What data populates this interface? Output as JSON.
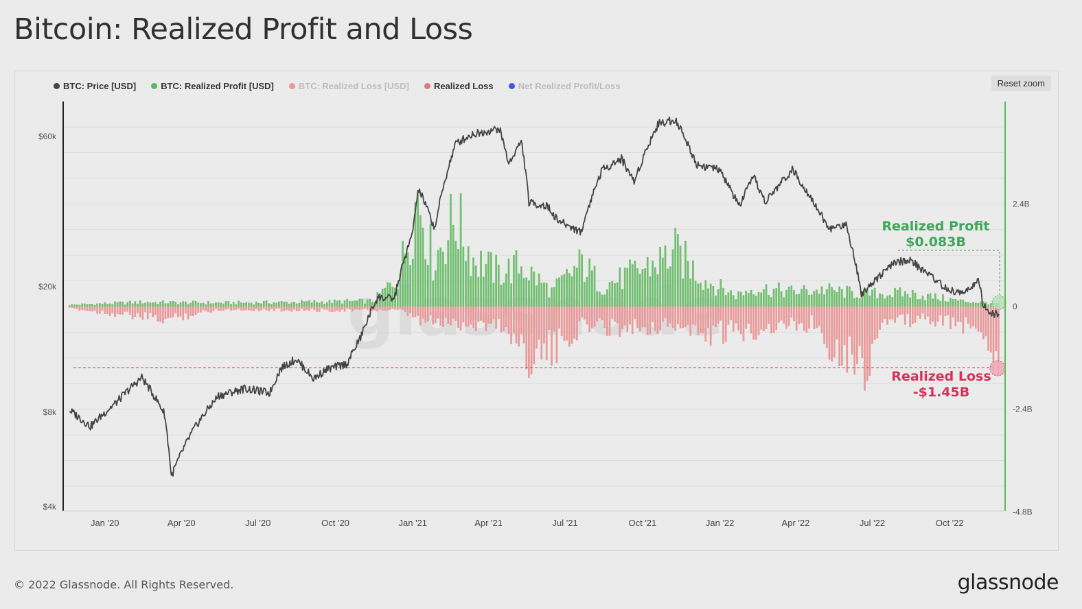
{
  "page": {
    "title": "Bitcoin: Realized Profit and Loss",
    "copyright": "© 2022 Glassnode. All Rights Reserved.",
    "brand": "glassnode",
    "watermark": "glassnode",
    "reset_zoom_label": "Reset zoom"
  },
  "legend": [
    {
      "label": "BTC: Price [USD]",
      "color": "#444444",
      "dimmed": false
    },
    {
      "label": "BTC: Realized Profit [USD]",
      "color": "#5cb85c",
      "dimmed": false
    },
    {
      "label": "BTC: Realized Loss [USD]",
      "color": "#e99a9a",
      "dimmed": true
    },
    {
      "label": "Realized Loss",
      "color": "#e07b7b",
      "dimmed": false
    },
    {
      "label": "Net Realized Profit/Loss",
      "color": "#3b5bdb",
      "dimmed": true
    }
  ],
  "annotations": {
    "profit_label": "Realized Profit",
    "profit_value": "$0.083B",
    "loss_label": "Realized Loss",
    "loss_value": "-$1.45B"
  },
  "chart_data": {
    "type": "line",
    "x_range": [
      "2019-11-19",
      "2022-12-01"
    ],
    "x_ticks": [
      "Jan '20",
      "Apr '20",
      "Jul '20",
      "Oct '20",
      "Jan '21",
      "Apr '21",
      "Jul '21",
      "Oct '21",
      "Jan '22",
      "Apr '22",
      "Jul '22",
      "Oct '22"
    ],
    "y_left": {
      "scale": "log",
      "ticks": [
        "$4k",
        "$8k",
        "$20k",
        "$60k"
      ],
      "tick_values": [
        4000,
        8000,
        20000,
        60000
      ],
      "range": [
        4000,
        100000
      ]
    },
    "y_right": {
      "ticks": [
        "2.4B",
        "0",
        "-2.4B",
        "-4.8B"
      ],
      "tick_values": [
        2.4,
        0,
        -2.4,
        -4.8
      ],
      "range": [
        -4.8,
        4.8
      ]
    },
    "series": [
      {
        "name": "BTC: Price [USD]",
        "axis": "left",
        "color": "#444444",
        "x": [
          "2019-11-20",
          "2019-12-15",
          "2020-01-15",
          "2020-02-14",
          "2020-03-12",
          "2020-03-20",
          "2020-04-15",
          "2020-05-15",
          "2020-06-15",
          "2020-07-15",
          "2020-07-28",
          "2020-08-15",
          "2020-09-05",
          "2020-09-20",
          "2020-10-15",
          "2020-10-31",
          "2020-11-20",
          "2020-12-10",
          "2020-12-31",
          "2021-01-08",
          "2021-01-27",
          "2021-02-21",
          "2021-03-13",
          "2021-04-14",
          "2021-04-25",
          "2021-05-10",
          "2021-05-19",
          "2021-06-10",
          "2021-06-22",
          "2021-07-20",
          "2021-08-14",
          "2021-09-06",
          "2021-09-21",
          "2021-10-20",
          "2021-11-09",
          "2021-12-04",
          "2021-12-31",
          "2022-01-24",
          "2022-02-10",
          "2022-02-24",
          "2022-03-28",
          "2022-04-15",
          "2022-05-10",
          "2022-05-31",
          "2022-06-18",
          "2022-07-08",
          "2022-07-30",
          "2022-08-15",
          "2022-09-10",
          "2022-09-30",
          "2022-10-20",
          "2022-11-05",
          "2022-11-09",
          "2022-11-20",
          "2022-11-28"
        ],
        "y": [
          8100,
          7200,
          8600,
          10300,
          7900,
          5000,
          7000,
          9000,
          9500,
          9200,
          11000,
          11800,
          10200,
          10900,
          11400,
          13800,
          18500,
          18300,
          29000,
          40800,
          30500,
          57000,
          61000,
          63500,
          49000,
          58000,
          37000,
          36000,
          32500,
          29800,
          47000,
          51000,
          43000,
          66000,
          68000,
          49000,
          47000,
          36000,
          44500,
          37000,
          47000,
          40000,
          30500,
          31500,
          19000,
          21500,
          24000,
          24200,
          21500,
          19400,
          19200,
          21000,
          17500,
          16300,
          16400
        ]
      },
      {
        "name": "BTC: Realized Profit [USD]",
        "axis": "right",
        "color": "#5cb85c",
        "unit": "B",
        "x": [
          "2019-11-20",
          "2020-02-14",
          "2020-05-15",
          "2020-08-15",
          "2020-11-15",
          "2020-12-15",
          "2021-01-08",
          "2021-01-25",
          "2021-02-21",
          "2021-03-13",
          "2021-04-14",
          "2021-05-10",
          "2021-06-15",
          "2021-07-21",
          "2021-08-14",
          "2021-09-06",
          "2021-10-20",
          "2021-11-09",
          "2021-12-15",
          "2022-01-20",
          "2022-02-10",
          "2022-03-28",
          "2022-05-05",
          "2022-06-15",
          "2022-08-15",
          "2022-10-15",
          "2022-11-28"
        ],
        "y": [
          0.05,
          0.12,
          0.1,
          0.12,
          0.15,
          0.8,
          3.05,
          1.2,
          2.4,
          1.3,
          0.9,
          1.1,
          0.4,
          1.15,
          0.55,
          0.75,
          1.2,
          1.45,
          0.7,
          0.3,
          0.5,
          0.4,
          0.45,
          0.35,
          0.35,
          0.15,
          0.083
        ]
      },
      {
        "name": "Realized Loss",
        "axis": "right",
        "color": "#e07b7b",
        "unit": "B",
        "x": [
          "2019-11-20",
          "2020-03-12",
          "2020-05-15",
          "2020-09-05",
          "2020-12-15",
          "2021-01-11",
          "2021-02-22",
          "2021-04-18",
          "2021-05-19",
          "2021-06-22",
          "2021-07-20",
          "2021-09-07",
          "2021-11-15",
          "2021-12-04",
          "2022-01-22",
          "2022-02-24",
          "2022-04-25",
          "2022-05-12",
          "2022-06-13",
          "2022-06-18",
          "2022-07-15",
          "2022-09-10",
          "2022-11-09",
          "2022-11-28"
        ],
        "y": [
          -0.05,
          -0.35,
          -0.08,
          -0.1,
          -0.1,
          -0.4,
          -0.45,
          -0.5,
          -1.3,
          -1.15,
          -0.5,
          -0.55,
          -0.5,
          -0.75,
          -0.7,
          -0.55,
          -0.45,
          -1.0,
          -1.35,
          -1.85,
          -0.4,
          -0.35,
          -0.6,
          -1.45
        ]
      }
    ],
    "reference_lines": [
      {
        "series": "BTC: Realized Profit [USD]",
        "value": 0.083,
        "color": "#3aa35c"
      },
      {
        "series": "Realized Loss",
        "value": -1.45,
        "color": "#d63a5a"
      }
    ]
  }
}
